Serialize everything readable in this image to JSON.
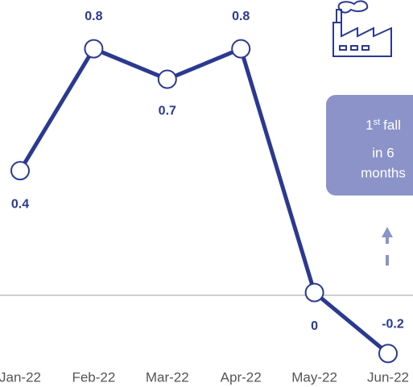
{
  "chart_data": {
    "type": "line",
    "categories": [
      "Jan-22",
      "Feb-22",
      "Mar-22",
      "Apr-22",
      "May-22",
      "Jun-22"
    ],
    "values": [
      0.4,
      0.8,
      0.7,
      0.8,
      0,
      -0.2
    ],
    "color": "#2b3990",
    "ylim": [
      -0.31,
      0.96
    ],
    "annotation": {
      "ordinal": "1",
      "suffix": "st",
      "line1": "fall",
      "line2": "in 6",
      "line3": "months"
    }
  }
}
